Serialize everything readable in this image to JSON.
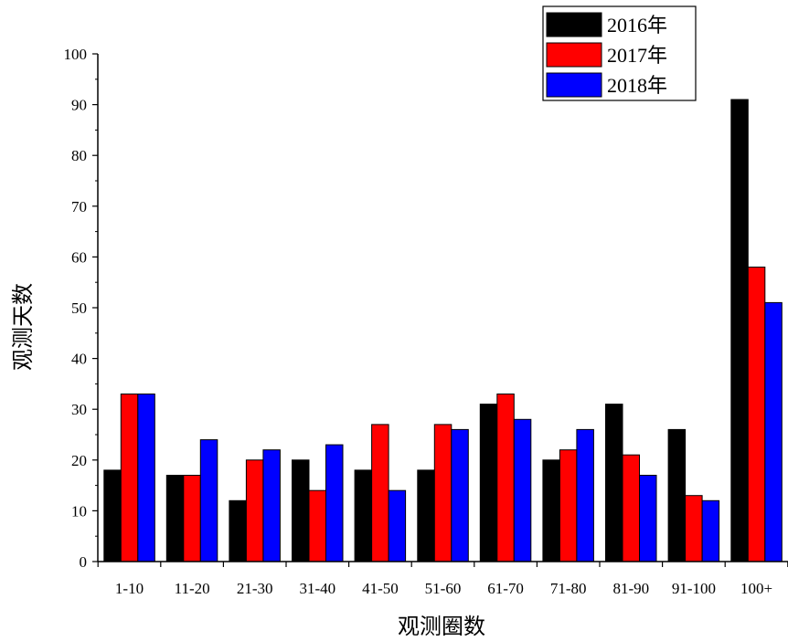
{
  "chart_data": {
    "type": "bar",
    "xlabel": "观测圈数",
    "ylabel": "观测天数",
    "ylim": [
      0,
      100
    ],
    "yticks": [
      0,
      10,
      20,
      30,
      40,
      50,
      60,
      70,
      80,
      90,
      100
    ],
    "categories": [
      "1-10",
      "11-20",
      "21-30",
      "31-40",
      "41-50",
      "51-60",
      "61-70",
      "71-80",
      "81-90",
      "91-100",
      "100+"
    ],
    "series": [
      {
        "name": "2016年",
        "color": "#000000",
        "values": [
          18,
          17,
          12,
          20,
          18,
          18,
          31,
          20,
          31,
          26,
          91
        ]
      },
      {
        "name": "2017年",
        "color": "#ff0000",
        "values": [
          33,
          17,
          20,
          14,
          27,
          27,
          33,
          22,
          21,
          13,
          58
        ]
      },
      {
        "name": "2018年",
        "color": "#0000ff",
        "values": [
          33,
          24,
          22,
          23,
          14,
          26,
          28,
          26,
          17,
          12,
          51
        ]
      }
    ],
    "legend": "top-right",
    "grid": false
  }
}
